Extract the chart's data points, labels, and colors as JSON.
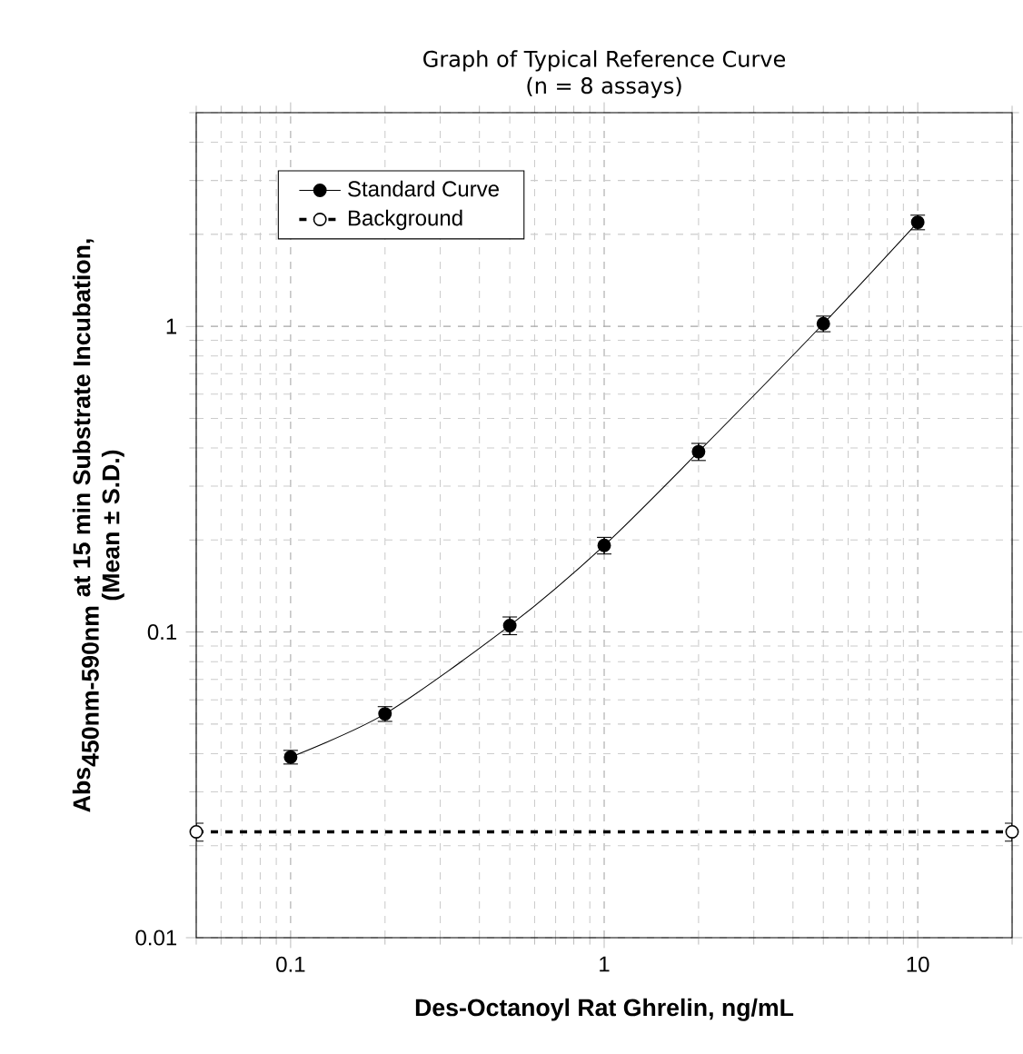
{
  "chart_data": {
    "type": "line",
    "title": "Graph of Typical Reference Curve",
    "subtitle": "(n = 8 assays)",
    "xlabel": "Des-Octanoyl Rat Ghrelin, ng/mL",
    "ylabel": "\\begin{array}{c}\\textbf{Abs}_{\\textbf{450nm-590nm}}\\textbf{ at 15 min Substrate Incubation,}\\\\ \\textbf{(Mean ± S.D.)}\\end{array}",
    "series": [
      {
        "name": "Standard Curve",
        "color": "#000000",
        "line_style": "solid",
        "x": [
          0.1,
          0.2,
          0.5,
          1,
          2,
          5,
          10
        ],
        "values": [
          0.039,
          0.054,
          0.105,
          0.192,
          0.389,
          1.02,
          2.19
        ],
        "errors": [
          0.002,
          0.003,
          0.007,
          0.012,
          0.025,
          0.06,
          0.12
        ]
      },
      {
        "name": "Background",
        "color": "#000000",
        "line_style": "dashed",
        "x": [
          0.05,
          20
        ],
        "values": [
          0.0222,
          0.0222
        ],
        "errors": [
          0.0015,
          0.0015
        ]
      }
    ],
    "xlim": [
      0.05,
      20
    ],
    "ylim": [
      0.01,
      5
    ],
    "xticks": [
      0.1,
      1,
      10
    ],
    "yticks": [
      0.01,
      0.1,
      1
    ],
    "log": "xy",
    "grid": true,
    "legend": "top left",
    "marker": "circle"
  }
}
